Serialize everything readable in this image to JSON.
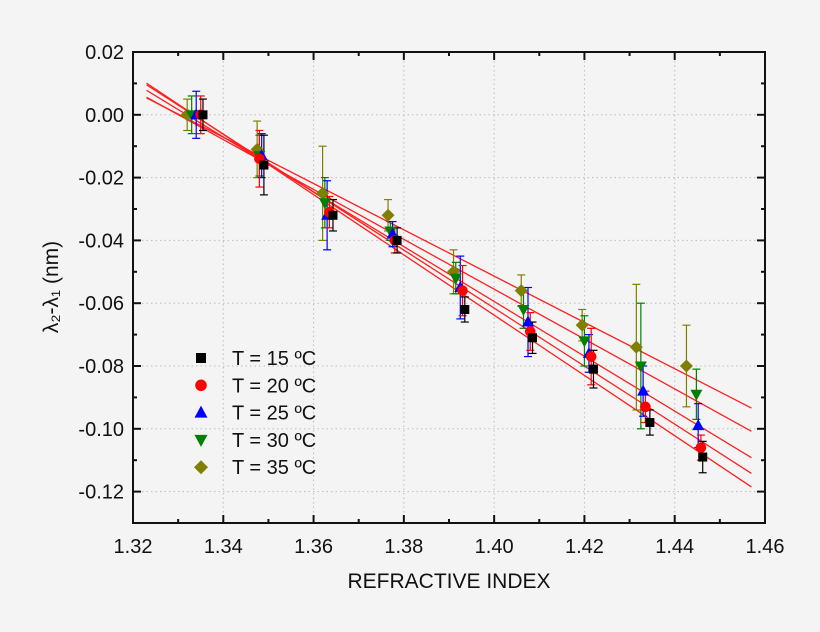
{
  "chart_data": {
    "type": "scatter",
    "xlabel": "REFRACTIVE INDEX",
    "ylabel": "λ₂-λ₁ (nm)",
    "xlim": [
      1.32,
      1.46
    ],
    "ylim": [
      -0.13,
      0.02
    ],
    "x_ticks": [
      "1.32",
      "1.34",
      "1.36",
      "1.38",
      "1.40",
      "1.42",
      "1.44",
      "1.46"
    ],
    "y_ticks": [
      "0.02",
      "0.00",
      "-0.02",
      "-0.04",
      "-0.06",
      "-0.08",
      "-0.10",
      "-0.12"
    ],
    "grid": "dotted at major ticks",
    "legend_position": "lower-left",
    "fit_line_color": "#ff2020",
    "fit": "linear fit per series",
    "fit_range": [
      1.323,
      1.457
    ],
    "series": [
      {
        "name": "T = 15 ºC",
        "marker": "square",
        "color": "#000000",
        "x": [
          1.3355,
          1.349,
          1.3643,
          1.3785,
          1.3935,
          1.4085,
          1.422,
          1.4345,
          1.4462
        ],
        "y": [
          0.0,
          -0.016,
          -0.032,
          -0.04,
          -0.062,
          -0.071,
          -0.081,
          -0.098,
          -0.109
        ],
        "err": [
          0.005,
          0.0095,
          0.005,
          0.004,
          0.004,
          0.005,
          0.006,
          0.004,
          0.005
        ]
      },
      {
        "name": "T = 20 ºC",
        "marker": "circle",
        "color": "#ff0000",
        "x": [
          1.335,
          1.348,
          1.3635,
          1.378,
          1.393,
          1.408,
          1.4215,
          1.4335,
          1.4458
        ],
        "y": [
          0.0,
          -0.014,
          -0.031,
          -0.04,
          -0.056,
          -0.069,
          -0.077,
          -0.093,
          -0.106
        ],
        "err": [
          0.006,
          0.009,
          0.005,
          0.004,
          0.008,
          0.006,
          0.009,
          0.005,
          0.004
        ]
      },
      {
        "name": "T = 25 ºC",
        "marker": "triangle-up",
        "color": "#0000ff",
        "x": [
          1.334,
          1.3485,
          1.363,
          1.3775,
          1.3925,
          1.4075,
          1.421,
          1.433,
          1.4452
        ],
        "y": [
          0.0,
          -0.013,
          -0.032,
          -0.038,
          -0.055,
          -0.066,
          -0.076,
          -0.088,
          -0.099
        ],
        "err": [
          0.0075,
          0.007,
          0.011,
          0.004,
          0.01,
          0.011,
          0.006,
          0.008,
          0.007
        ]
      },
      {
        "name": "T = 30 ºC",
        "marker": "triangle-down",
        "color": "#008000",
        "x": [
          1.333,
          1.348,
          1.3625,
          1.377,
          1.3915,
          1.4065,
          1.42,
          1.4325,
          1.4448
        ],
        "y": [
          0.0,
          -0.013,
          -0.028,
          -0.037,
          -0.052,
          -0.062,
          -0.072,
          -0.08,
          -0.089
        ],
        "err": [
          0.006,
          0.0065,
          0.008,
          0.003,
          0.005,
          0.006,
          0.008,
          0.02,
          0.008
        ]
      },
      {
        "name": "T = 35 ºC",
        "marker": "diamond",
        "color": "#808000",
        "x": [
          1.332,
          1.3475,
          1.362,
          1.3765,
          1.391,
          1.406,
          1.4195,
          1.4315,
          1.4426
        ],
        "y": [
          0.0,
          -0.011,
          -0.025,
          -0.032,
          -0.05,
          -0.056,
          -0.067,
          -0.074,
          -0.08
        ],
        "err": [
          0.005,
          0.009,
          0.015,
          0.005,
          0.007,
          0.005,
          0.005,
          0.02,
          0.013
        ]
      }
    ]
  }
}
